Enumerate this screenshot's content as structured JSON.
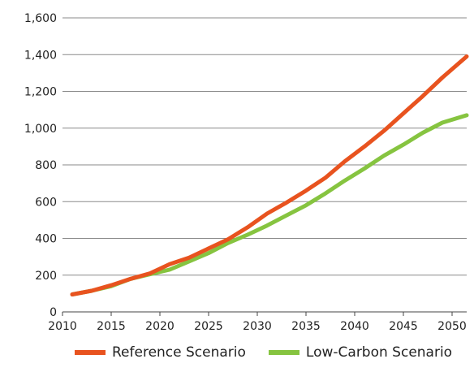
{
  "chart_data": {
    "type": "line",
    "title": "",
    "xlabel": "",
    "ylabel": "",
    "xlim": [
      2010,
      2051.5
    ],
    "ylim": [
      0,
      1600
    ],
    "grid": "horizontal",
    "legend_position": "bottom",
    "y_ticks": [
      0,
      200,
      400,
      600,
      800,
      1000,
      1200,
      1400,
      1600
    ],
    "y_tick_labels": [
      "0",
      "200",
      "400",
      "600",
      "800",
      "1,000",
      "1,200",
      "1,400",
      "1,600"
    ],
    "x_ticks": [
      2010,
      2015,
      2020,
      2025,
      2030,
      2035,
      2040,
      2045,
      2050
    ],
    "x_tick_labels": [
      "2010",
      "2015",
      "2020",
      "2025",
      "2030",
      "2035",
      "2040",
      "2045",
      "2050"
    ],
    "x": [
      2011,
      2013,
      2015,
      2017,
      2019,
      2021,
      2023,
      2025,
      2027,
      2029,
      2031,
      2033,
      2035,
      2037,
      2039,
      2041,
      2043,
      2045,
      2047,
      2049,
      2051.5
    ],
    "series": [
      {
        "name": "Reference Scenario",
        "color": "#e8531f",
        "values": [
          95,
          115,
          145,
          180,
          210,
          260,
          295,
          345,
          395,
          460,
          535,
          595,
          660,
          730,
          820,
          900,
          985,
          1080,
          1175,
          1275,
          1390
        ]
      },
      {
        "name": "Low-Carbon Scenario",
        "color": "#86c440",
        "values": [
          95,
          115,
          140,
          180,
          205,
          230,
          275,
          320,
          375,
          420,
          470,
          525,
          580,
          645,
          715,
          780,
          850,
          910,
          975,
          1030,
          1070
        ]
      }
    ]
  }
}
